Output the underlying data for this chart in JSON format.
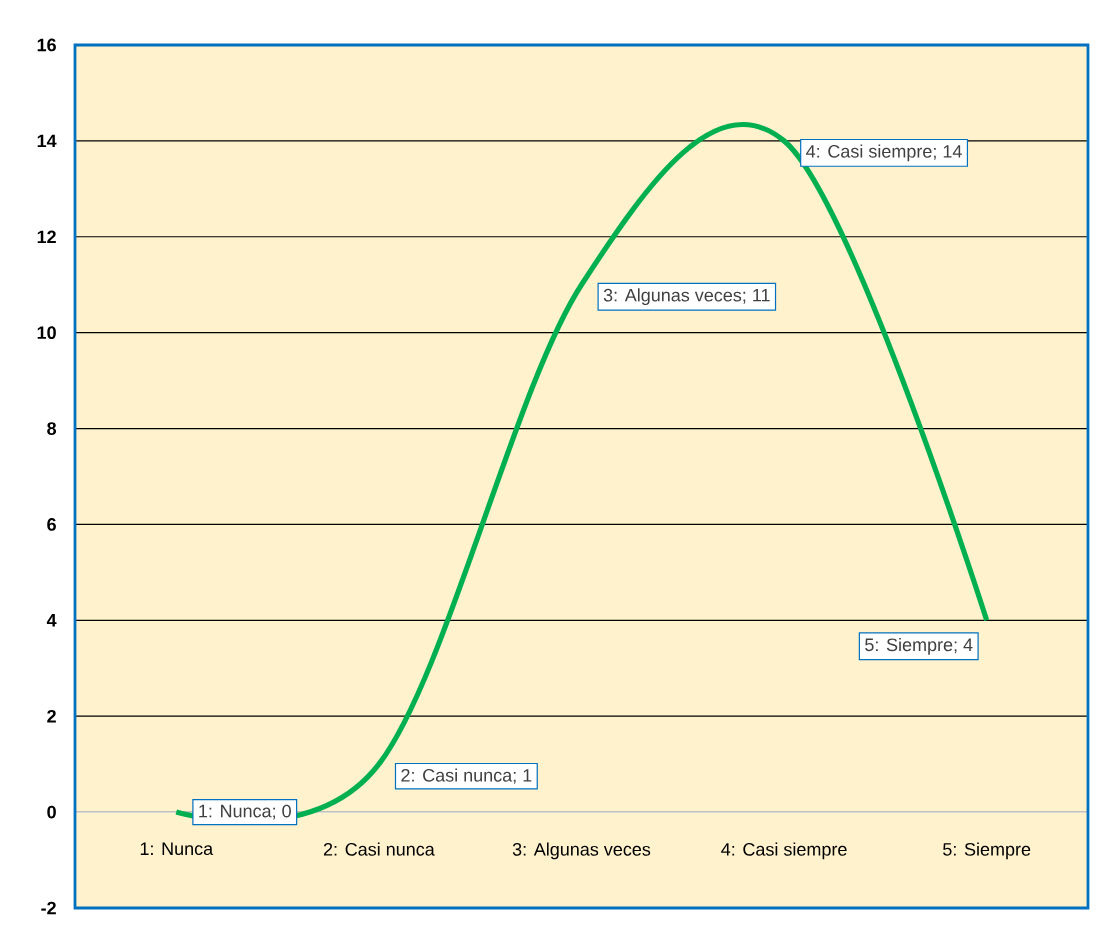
{
  "chart_data": {
    "type": "line",
    "categories": [
      "1: Nunca",
      "2: Casi nunca",
      "3: Algunas veces",
      "4: Casi siempre",
      "5: Siempre"
    ],
    "values": [
      0,
      1,
      11,
      14,
      4
    ],
    "color": "#00b050",
    "ylim": [
      -2,
      16
    ],
    "yticks": [
      -2,
      0,
      2,
      4,
      6,
      8,
      10,
      12,
      14,
      16
    ],
    "grid": "y",
    "value_labels": [
      "1: Nunca; 0",
      "2: Casi nunca; 1",
      "3: Algunas veces; 11",
      "4: Casi siempre; 14",
      "5: Siempre; 4"
    ]
  }
}
